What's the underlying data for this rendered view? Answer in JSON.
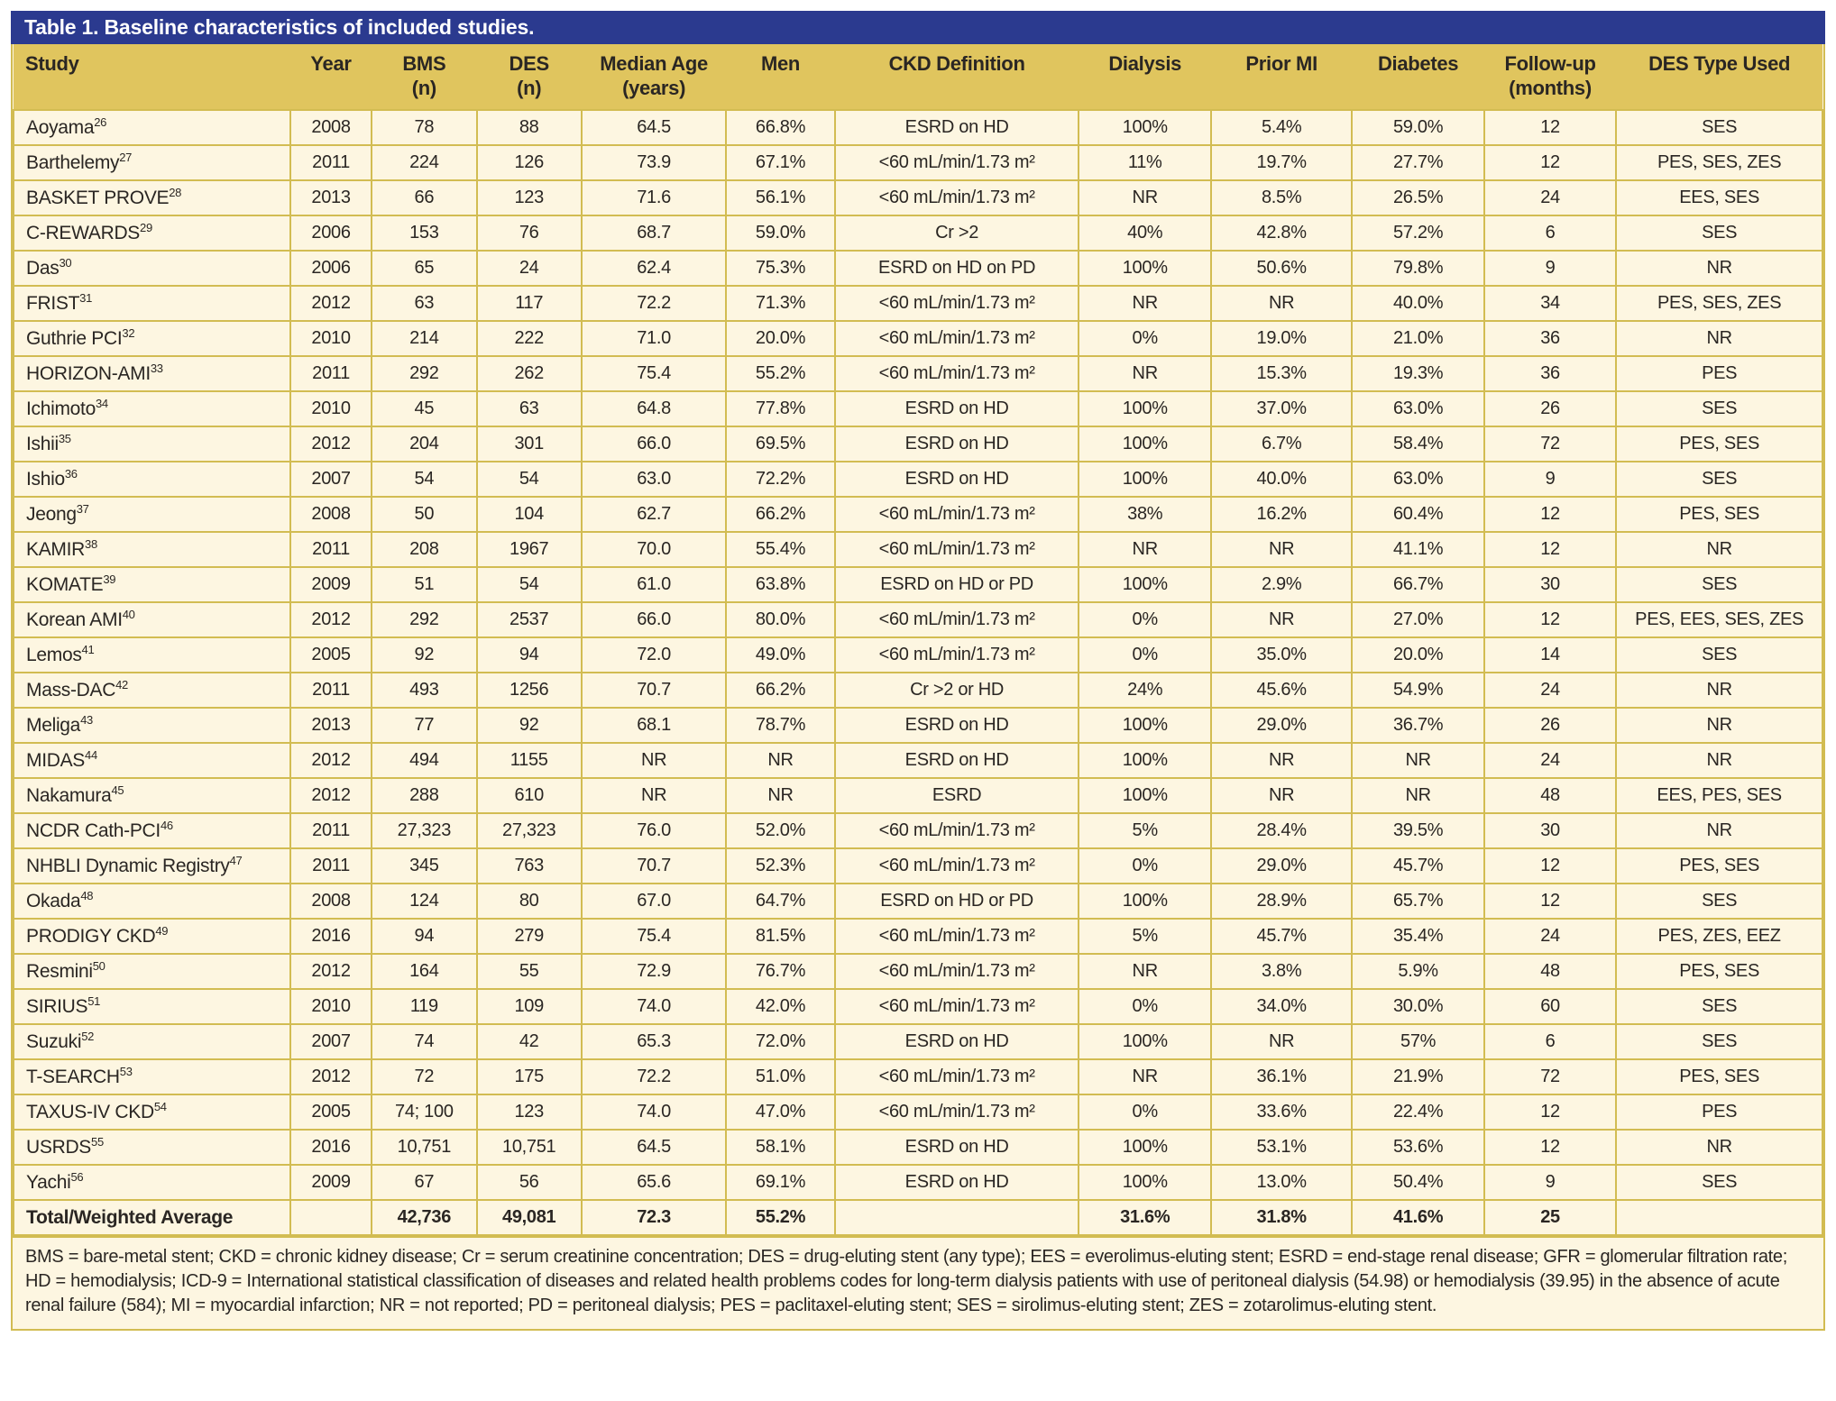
{
  "title": "Table 1. Baseline characteristics of included studies.",
  "colors": {
    "title_bar_blue": "#2b3a8f",
    "header_gold": "#e0c55e",
    "row_cream": "#fdf6e1",
    "border_gold": "#d2bc52",
    "text": "#2a2623"
  },
  "table": {
    "columns": [
      {
        "key": "study",
        "label": "Study",
        "sub": ""
      },
      {
        "key": "year",
        "label": "Year",
        "sub": ""
      },
      {
        "key": "bms",
        "label": "BMS",
        "sub": "(n)"
      },
      {
        "key": "des",
        "label": "DES",
        "sub": "(n)"
      },
      {
        "key": "median_age",
        "label": "Median Age",
        "sub": "(years)"
      },
      {
        "key": "men",
        "label": "Men",
        "sub": ""
      },
      {
        "key": "ckd_definition",
        "label": "CKD Definition",
        "sub": ""
      },
      {
        "key": "dialysis",
        "label": "Dialysis",
        "sub": ""
      },
      {
        "key": "prior_mi",
        "label": "Prior MI",
        "sub": ""
      },
      {
        "key": "diabetes",
        "label": "Diabetes",
        "sub": ""
      },
      {
        "key": "follow_up",
        "label": "Follow-up",
        "sub": "(months)"
      },
      {
        "key": "des_type",
        "label": "DES Type Used",
        "sub": ""
      }
    ],
    "rows": [
      {
        "study": "Aoyama",
        "ref": "26",
        "cells": [
          "2008",
          "78",
          "88",
          "64.5",
          "66.8%",
          "ESRD on HD",
          "100%",
          "5.4%",
          "59.0%",
          "12",
          "SES"
        ]
      },
      {
        "study": "Barthelemy",
        "ref": "27",
        "cells": [
          "2011",
          "224",
          "126",
          "73.9",
          "67.1%",
          "<60 mL/min/1.73 m²",
          "11%",
          "19.7%",
          "27.7%",
          "12",
          "PES, SES, ZES"
        ]
      },
      {
        "study": "BASKET PROVE",
        "ref": "28",
        "cells": [
          "2013",
          "66",
          "123",
          "71.6",
          "56.1%",
          "<60 mL/min/1.73 m²",
          "NR",
          "8.5%",
          "26.5%",
          "24",
          "EES, SES"
        ]
      },
      {
        "study": "C-REWARDS",
        "ref": "29",
        "cells": [
          "2006",
          "153",
          "76",
          "68.7",
          "59.0%",
          "Cr >2",
          "40%",
          "42.8%",
          "57.2%",
          "6",
          "SES"
        ]
      },
      {
        "study": "Das",
        "ref": "30",
        "cells": [
          "2006",
          "65",
          "24",
          "62.4",
          "75.3%",
          "ESRD on HD on PD",
          "100%",
          "50.6%",
          "79.8%",
          "9",
          "NR"
        ]
      },
      {
        "study": "FRIST",
        "ref": "31",
        "cells": [
          "2012",
          "63",
          "117",
          "72.2",
          "71.3%",
          "<60 mL/min/1.73 m²",
          "NR",
          "NR",
          "40.0%",
          "34",
          "PES, SES, ZES"
        ]
      },
      {
        "study": "Guthrie PCI",
        "ref": "32",
        "cells": [
          "2010",
          "214",
          "222",
          "71.0",
          "20.0%",
          "<60 mL/min/1.73 m²",
          "0%",
          "19.0%",
          "21.0%",
          "36",
          "NR"
        ]
      },
      {
        "study": "HORIZON-AMI",
        "ref": "33",
        "cells": [
          "2011",
          "292",
          "262",
          "75.4",
          "55.2%",
          "<60 mL/min/1.73 m²",
          "NR",
          "15.3%",
          "19.3%",
          "36",
          "PES"
        ]
      },
      {
        "study": "Ichimoto",
        "ref": "34",
        "cells": [
          "2010",
          "45",
          "63",
          "64.8",
          "77.8%",
          "ESRD on HD",
          "100%",
          "37.0%",
          "63.0%",
          "26",
          "SES"
        ]
      },
      {
        "study": "Ishii",
        "ref": "35",
        "cells": [
          "2012",
          "204",
          "301",
          "66.0",
          "69.5%",
          "ESRD on HD",
          "100%",
          "6.7%",
          "58.4%",
          "72",
          "PES, SES"
        ]
      },
      {
        "study": "Ishio",
        "ref": "36",
        "cells": [
          "2007",
          "54",
          "54",
          "63.0",
          "72.2%",
          "ESRD on HD",
          "100%",
          "40.0%",
          "63.0%",
          "9",
          "SES"
        ]
      },
      {
        "study": "Jeong",
        "ref": "37",
        "cells": [
          "2008",
          "50",
          "104",
          "62.7",
          "66.2%",
          "<60 mL/min/1.73 m²",
          "38%",
          "16.2%",
          "60.4%",
          "12",
          "PES, SES"
        ]
      },
      {
        "study": "KAMIR",
        "ref": "38",
        "cells": [
          "2011",
          "208",
          "1967",
          "70.0",
          "55.4%",
          "<60 mL/min/1.73 m²",
          "NR",
          "NR",
          "41.1%",
          "12",
          "NR"
        ]
      },
      {
        "study": "KOMATE",
        "ref": "39",
        "cells": [
          "2009",
          "51",
          "54",
          "61.0",
          "63.8%",
          "ESRD on HD or PD",
          "100%",
          "2.9%",
          "66.7%",
          "30",
          "SES"
        ]
      },
      {
        "study": "Korean AMI",
        "ref": "40",
        "cells": [
          "2012",
          "292",
          "2537",
          "66.0",
          "80.0%",
          "<60 mL/min/1.73 m²",
          "0%",
          "NR",
          "27.0%",
          "12",
          "PES, EES, SES, ZES"
        ]
      },
      {
        "study": "Lemos",
        "ref": "41",
        "cells": [
          "2005",
          "92",
          "94",
          "72.0",
          "49.0%",
          "<60 mL/min/1.73 m²",
          "0%",
          "35.0%",
          "20.0%",
          "14",
          "SES"
        ]
      },
      {
        "study": "Mass-DAC",
        "ref": "42",
        "cells": [
          "2011",
          "493",
          "1256",
          "70.7",
          "66.2%",
          "Cr >2 or HD",
          "24%",
          "45.6%",
          "54.9%",
          "24",
          "NR"
        ]
      },
      {
        "study": "Meliga",
        "ref": "43",
        "cells": [
          "2013",
          "77",
          "92",
          "68.1",
          "78.7%",
          "ESRD on HD",
          "100%",
          "29.0%",
          "36.7%",
          "26",
          "NR"
        ]
      },
      {
        "study": "MIDAS",
        "ref": "44",
        "cells": [
          "2012",
          "494",
          "1155",
          "NR",
          "NR",
          "ESRD on HD",
          "100%",
          "NR",
          "NR",
          "24",
          "NR"
        ]
      },
      {
        "study": "Nakamura",
        "ref": "45",
        "cells": [
          "2012",
          "288",
          "610",
          "NR",
          "NR",
          "ESRD",
          "100%",
          "NR",
          "NR",
          "48",
          "EES, PES, SES"
        ]
      },
      {
        "study": "NCDR Cath-PCI",
        "ref": "46",
        "cells": [
          "2011",
          "27,323",
          "27,323",
          "76.0",
          "52.0%",
          "<60 mL/min/1.73 m²",
          "5%",
          "28.4%",
          "39.5%",
          "30",
          "NR"
        ]
      },
      {
        "study": "NHBLI Dynamic Registry",
        "ref": "47",
        "cells": [
          "2011",
          "345",
          "763",
          "70.7",
          "52.3%",
          "<60 mL/min/1.73 m²",
          "0%",
          "29.0%",
          "45.7%",
          "12",
          "PES, SES"
        ]
      },
      {
        "study": "Okada",
        "ref": "48",
        "cells": [
          "2008",
          "124",
          "80",
          "67.0",
          "64.7%",
          "ESRD on HD or PD",
          "100%",
          "28.9%",
          "65.7%",
          "12",
          "SES"
        ]
      },
      {
        "study": "PRODIGY CKD",
        "ref": "49",
        "cells": [
          "2016",
          "94",
          "279",
          "75.4",
          "81.5%",
          "<60 mL/min/1.73 m²",
          "5%",
          "45.7%",
          "35.4%",
          "24",
          "PES, ZES, EEZ"
        ]
      },
      {
        "study": "Resmini",
        "ref": "50",
        "cells": [
          "2012",
          "164",
          "55",
          "72.9",
          "76.7%",
          "<60 mL/min/1.73 m²",
          "NR",
          "3.8%",
          "5.9%",
          "48",
          "PES, SES"
        ]
      },
      {
        "study": "SIRIUS",
        "ref": "51",
        "cells": [
          "2010",
          "119",
          "109",
          "74.0",
          "42.0%",
          "<60 mL/min/1.73 m²",
          "0%",
          "34.0%",
          "30.0%",
          "60",
          "SES"
        ]
      },
      {
        "study": "Suzuki",
        "ref": "52",
        "cells": [
          "2007",
          "74",
          "42",
          "65.3",
          "72.0%",
          "ESRD on HD",
          "100%",
          "NR",
          "57%",
          "6",
          "SES"
        ]
      },
      {
        "study": "T-SEARCH",
        "ref": "53",
        "cells": [
          "2012",
          "72",
          "175",
          "72.2",
          "51.0%",
          "<60 mL/min/1.73 m²",
          "NR",
          "36.1%",
          "21.9%",
          "72",
          "PES, SES"
        ]
      },
      {
        "study": "TAXUS-IV CKD",
        "ref": "54",
        "cells": [
          "2005",
          "74; 100",
          "123",
          "74.0",
          "47.0%",
          "<60 mL/min/1.73 m²",
          "0%",
          "33.6%",
          "22.4%",
          "12",
          "PES"
        ]
      },
      {
        "study": "USRDS",
        "ref": "55",
        "cells": [
          "2016",
          "10,751",
          "10,751",
          "64.5",
          "58.1%",
          "ESRD on HD",
          "100%",
          "53.1%",
          "53.6%",
          "12",
          "NR"
        ]
      },
      {
        "study": "Yachi",
        "ref": "56",
        "cells": [
          "2009",
          "67",
          "56",
          "65.6",
          "69.1%",
          "ESRD on HD",
          "100%",
          "13.0%",
          "50.4%",
          "9",
          "SES"
        ]
      }
    ],
    "total_row": {
      "study": "Total/Weighted Average",
      "ref": "",
      "cells": [
        "",
        "42,736",
        "49,081",
        "72.3",
        "55.2%",
        "",
        "31.6%",
        "31.8%",
        "41.6%",
        "25",
        ""
      ]
    }
  },
  "footnote": "BMS = bare-metal stent; CKD = chronic kidney disease; Cr = serum creatinine concentration; DES = drug-eluting stent (any type); EES = everolimus-eluting stent; ESRD = end-stage renal disease; GFR = glomerular filtration rate; HD = hemodialysis; ICD-9 = International statistical classification of diseases and related health problems codes for long-term dialysis patients with use of peritoneal dialysis (54.98) or hemodialysis (39.95) in the absence of acute renal failure (584); MI = myocardial infarction; NR = not reported; PD = peritoneal dialysis; PES = paclitaxel-eluting stent; SES = sirolimus-eluting stent; ZES = zotarolimus-eluting stent."
}
